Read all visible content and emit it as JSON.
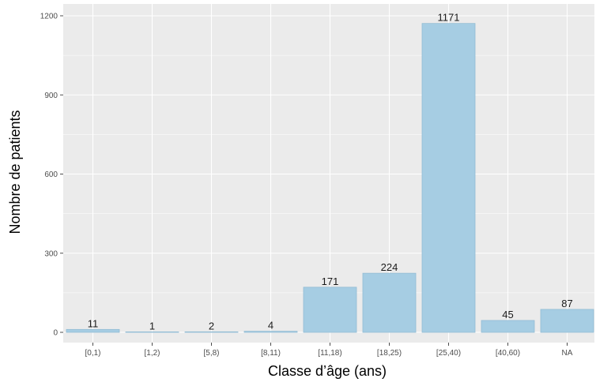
{
  "chart_data": {
    "type": "bar",
    "title": "",
    "xlabel": "Classe d’âge (ans)",
    "ylabel": "Nombre de patients",
    "categories": [
      "[0,1)",
      "[1,2)",
      "[5,8)",
      "[8,11)",
      "[11,18)",
      "[18,25)",
      "[25,40)",
      "[40,60)",
      "NA"
    ],
    "values": [
      11,
      1,
      2,
      4,
      171,
      224,
      1171,
      45,
      87
    ],
    "data_labels": [
      "11",
      "1",
      "2",
      "4",
      "171",
      "224",
      "1171",
      "45",
      "87"
    ],
    "yticks": [
      0,
      300,
      600,
      900,
      1200
    ],
    "ytick_labels": [
      "0",
      "300",
      "600",
      "900",
      "1200"
    ],
    "ylim": [
      0,
      1200
    ],
    "grid": true,
    "colors": {
      "panel_background": "#ebebeb",
      "grid": "#ffffff",
      "bar_fill": "#a6cde3",
      "bar_stroke": "#92bcd4"
    }
  }
}
